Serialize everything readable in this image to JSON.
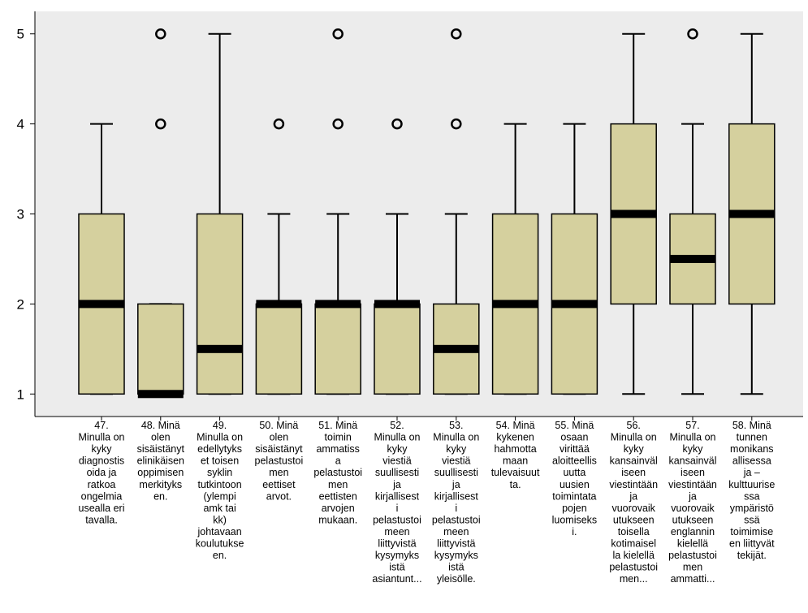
{
  "chart_data": {
    "type": "boxplot",
    "title": "",
    "xlabel": "",
    "ylabel": "",
    "ylim": [
      0.75,
      5.25
    ],
    "yticks": [
      1,
      2,
      3,
      4,
      5
    ],
    "grid": false,
    "legend": "none",
    "colors": {
      "plot_bg": "#ececec",
      "box_fill": "#d5d09e",
      "stroke": "#000000"
    },
    "categories": [
      [
        "47.",
        "Minulla on",
        "kyky",
        "diagnostis",
        "oida ja",
        "ratkoa",
        "ongelmia",
        "usealla eri",
        "tavalla."
      ],
      [
        "48. Minä",
        "olen",
        "sisäistänyt",
        "elinikäisen",
        "oppimisen",
        "merkityks",
        "en."
      ],
      [
        "49.",
        "Minulla on",
        "edellytyks",
        "et toisen",
        "syklin",
        "tutkintoon",
        "(ylempi",
        "amk tai",
        "kk)",
        "johtavaan",
        "koulutukse",
        "en."
      ],
      [
        "50. Minä",
        "olen",
        "sisäistänyt",
        "pelastustoi",
        "men",
        "eettiset",
        "arvot."
      ],
      [
        "51. Minä",
        "toimin",
        "ammatiss",
        "a",
        "pelastustoi",
        "men",
        "eettisten",
        "arvojen",
        "mukaan."
      ],
      [
        "52.",
        "Minulla on",
        "kyky",
        "viestiä",
        "suullisesti",
        "ja",
        "kirjallisest",
        "i",
        "pelastustoi",
        "meen",
        "liittyvistä",
        "kysymyks",
        "istä",
        "asiantunt..."
      ],
      [
        "53.",
        "Minulla on",
        "kyky",
        "viestiä",
        "suullisesti",
        "ja",
        "kirjallisest",
        "i",
        "pelastustoi",
        "meen",
        "liittyvistä",
        "kysymyks",
        "istä",
        "yleisölle."
      ],
      [
        "54. Minä",
        "kykenen",
        "hahmotta",
        "maan",
        "tulevaisuut",
        "ta."
      ],
      [
        "55. Minä",
        "osaan",
        "virittää",
        "aloitteellis",
        "uutta",
        "uusien",
        "toimintata",
        "pojen",
        "luomiseks",
        "i."
      ],
      [
        "56.",
        "Minulla on",
        "kyky",
        "kansainväl",
        "iseen",
        "viestintään",
        "ja",
        "vuorovaik",
        "utukseen",
        "toisella",
        "kotimaisel",
        "la kielellä",
        "pelastustoi",
        "men..."
      ],
      [
        "57.",
        "Minulla on",
        "kyky",
        "kansainväl",
        "iseen",
        "viestintään",
        "ja",
        "vuorovaik",
        "utukseen",
        "englannin",
        "kielellä",
        "pelastustoi",
        "men",
        "ammatti..."
      ],
      [
        "58. Minä",
        "tunnen",
        "monikans",
        "allisessa",
        "ja –",
        "kulttuurise",
        "ssa",
        "ympäristö",
        "ssä",
        "toimimise",
        "en liittyvät",
        "tekijät."
      ]
    ],
    "boxes": [
      {
        "whisker_low": 1,
        "q1": 1,
        "median": 2,
        "q3": 3,
        "whisker_high": 4,
        "outliers": []
      },
      {
        "whisker_low": 1,
        "q1": 1,
        "median": 1,
        "q3": 2,
        "whisker_high": 2,
        "outliers": [
          4,
          5
        ]
      },
      {
        "whisker_low": 1,
        "q1": 1,
        "median": 1.5,
        "q3": 3,
        "whisker_high": 5,
        "outliers": []
      },
      {
        "whisker_low": 1,
        "q1": 1,
        "median": 2,
        "q3": 2,
        "whisker_high": 3,
        "outliers": [
          4
        ]
      },
      {
        "whisker_low": 1,
        "q1": 1,
        "median": 2,
        "q3": 2,
        "whisker_high": 3,
        "outliers": [
          4,
          5
        ]
      },
      {
        "whisker_low": 1,
        "q1": 1,
        "median": 2,
        "q3": 2,
        "whisker_high": 3,
        "outliers": [
          4
        ]
      },
      {
        "whisker_low": 1,
        "q1": 1,
        "median": 1.5,
        "q3": 2,
        "whisker_high": 3,
        "outliers": [
          4,
          5
        ]
      },
      {
        "whisker_low": 1,
        "q1": 1,
        "median": 2,
        "q3": 3,
        "whisker_high": 4,
        "outliers": []
      },
      {
        "whisker_low": 1,
        "q1": 1,
        "median": 2,
        "q3": 3,
        "whisker_high": 4,
        "outliers": []
      },
      {
        "whisker_low": 1,
        "q1": 2,
        "median": 3,
        "q3": 4,
        "whisker_high": 5,
        "outliers": []
      },
      {
        "whisker_low": 1,
        "q1": 2,
        "median": 2.5,
        "q3": 3,
        "whisker_high": 4,
        "outliers": [
          5
        ]
      },
      {
        "whisker_low": 1,
        "q1": 2,
        "median": 3,
        "q3": 4,
        "whisker_high": 5,
        "outliers": []
      }
    ]
  }
}
